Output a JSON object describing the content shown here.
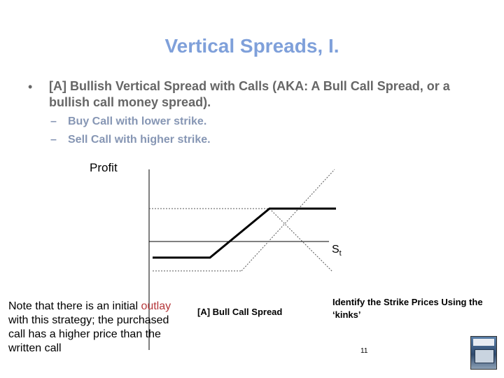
{
  "slide": {
    "title": "Vertical Spreads, I.",
    "bullet_symbol": "•",
    "bullet": "[A] Bullish Vertical Spread with Calls (AKA: A Bull Call Spread, or a bullish call money spread).",
    "subbullets": [
      {
        "dash": "–",
        "text": "Buy Call with lower strike."
      },
      {
        "dash": "–",
        "text": "Sell Call with higher strike."
      }
    ],
    "page_number": "11"
  },
  "diagram": {
    "y_axis_label": "Profit",
    "x_axis_label": {
      "base": "S",
      "subscript": "t"
    },
    "caption": "[A] Bull Call Spread",
    "note": {
      "before": "Note that there is an initial ",
      "highlight": "outlay",
      "after": " with this strategy; the purchased call has a higher price than the written call"
    },
    "identify_text": "Identify the Strike Prices Using the ‘kinks’",
    "colors": {
      "title": "#7fa0da",
      "highlight": "#b5373a",
      "bullet": "#666666",
      "subbullet": "#8696b4"
    }
  },
  "icons": {
    "book": "book-cover-icon"
  }
}
